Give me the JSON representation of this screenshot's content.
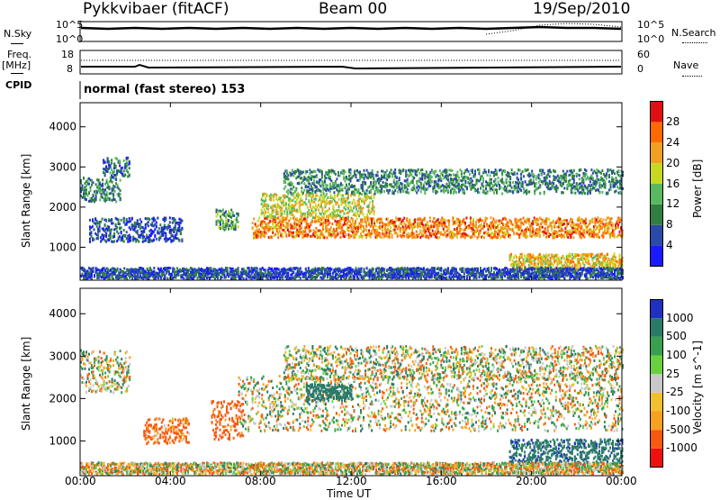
{
  "header": {
    "station": "Pykkvibaer (fitACF)",
    "beam": "Beam 00",
    "date": "19/Sep/2010"
  },
  "left_labels": {
    "nsky": "N.Sky",
    "freq": "Freq.",
    "mhz": "[MHz]",
    "cpid": "CPID"
  },
  "right_labels": {
    "nsearch": "N.Search",
    "nave": "Nave"
  },
  "strip_ticks": {
    "nsky_hi": "10^5",
    "nsky_lo": "10^0",
    "nsearch_hi": "10^5",
    "nsearch_lo": "10^0",
    "freq_hi": "18",
    "freq_lo": "8",
    "nave_hi": "60",
    "nave_lo": "0"
  },
  "cpid_text": "normal (fast stereo) 153",
  "x_ticks": [
    "00:00",
    "04:00",
    "08:00",
    "12:00",
    "16:00",
    "20:00",
    "00:00"
  ],
  "x_label": "Time UT",
  "y_ticks": [
    "1000",
    "2000",
    "3000",
    "4000"
  ],
  "y_label": "Slant Range [km]",
  "power_cbar": {
    "label": "Power [dB]",
    "ticks": [
      "28",
      "24",
      "20",
      "16",
      "12",
      "8",
      "4"
    ],
    "colors": [
      "#1a1aff",
      "#2a4aa8",
      "#2f8040",
      "#5ab860",
      "#c8d820",
      "#f0a020",
      "#ff6a00",
      "#e01010"
    ]
  },
  "velocity_cbar": {
    "label": "Velocity [m s^-1]",
    "ticks": [
      "1000",
      "500",
      "100",
      "25",
      "-25",
      "-100",
      "-500",
      "-1000"
    ],
    "colors": [
      "#ee1010",
      "#f85810",
      "#f8a020",
      "#f0c030",
      "#c8c8c8",
      "#6ad040",
      "#3aa050",
      "#2a7a6a",
      "#2030c0"
    ]
  },
  "chart_data": [
    {
      "type": "heatmap",
      "title": "Power",
      "xlabel": "Time UT",
      "ylabel": "Slant Range [km]",
      "xlim": [
        0,
        24
      ],
      "ylim": [
        180,
        4600
      ],
      "colorbar": {
        "label": "Power [dB]",
        "range": [
          0,
          32
        ]
      },
      "bands": [
        {
          "t": [
            0.0,
            1.8
          ],
          "range": [
            2100,
            2700
          ],
          "power": 10
        },
        {
          "t": [
            1.0,
            2.2
          ],
          "range": [
            2700,
            3200
          ],
          "power": 8
        },
        {
          "t": [
            0.4,
            4.5
          ],
          "range": [
            1100,
            1700
          ],
          "power": 6
        },
        {
          "t": [
            6.0,
            7.0
          ],
          "range": [
            1400,
            1900
          ],
          "power": 12
        },
        {
          "t": [
            7.6,
            24.0
          ],
          "range": [
            1200,
            1700
          ],
          "power": 24
        },
        {
          "t": [
            8.0,
            13.0
          ],
          "range": [
            1700,
            2300
          ],
          "power": 18
        },
        {
          "t": [
            9.0,
            24.0
          ],
          "range": [
            2300,
            2900
          ],
          "power": 10
        },
        {
          "t": [
            19.0,
            24.0
          ],
          "range": [
            400,
            800
          ],
          "power": 20
        },
        {
          "t": [
            0.0,
            24.0
          ],
          "range": [
            180,
            450
          ],
          "power": 6
        }
      ]
    },
    {
      "type": "heatmap",
      "title": "Velocity",
      "xlabel": "Time UT",
      "ylabel": "Slant Range [km]",
      "xlim": [
        0,
        24
      ],
      "ylim": [
        180,
        4600
      ],
      "colorbar": {
        "label": "Velocity [m s^-1]",
        "range": [
          -1000,
          1000
        ]
      },
      "bands": [
        {
          "t": [
            0.0,
            2.2
          ],
          "range": [
            2100,
            3100
          ],
          "velocity": 0
        },
        {
          "t": [
            2.8,
            4.8
          ],
          "range": [
            900,
            1500
          ],
          "velocity": -150
        },
        {
          "t": [
            5.8,
            7.2
          ],
          "range": [
            1000,
            1900
          ],
          "velocity": -200
        },
        {
          "t": [
            7.0,
            24.0
          ],
          "range": [
            1200,
            2500
          ],
          "velocity": 0
        },
        {
          "t": [
            9.0,
            24.0
          ],
          "range": [
            2400,
            3200
          ],
          "velocity": 0
        },
        {
          "t": [
            10.0,
            12.0
          ],
          "range": [
            1900,
            2300
          ],
          "velocity": 300
        },
        {
          "t": [
            19.0,
            24.0
          ],
          "range": [
            400,
            1000
          ],
          "velocity": 400
        },
        {
          "t": [
            0.0,
            24.0
          ],
          "range": [
            180,
            450
          ],
          "velocity": -20
        }
      ]
    }
  ]
}
